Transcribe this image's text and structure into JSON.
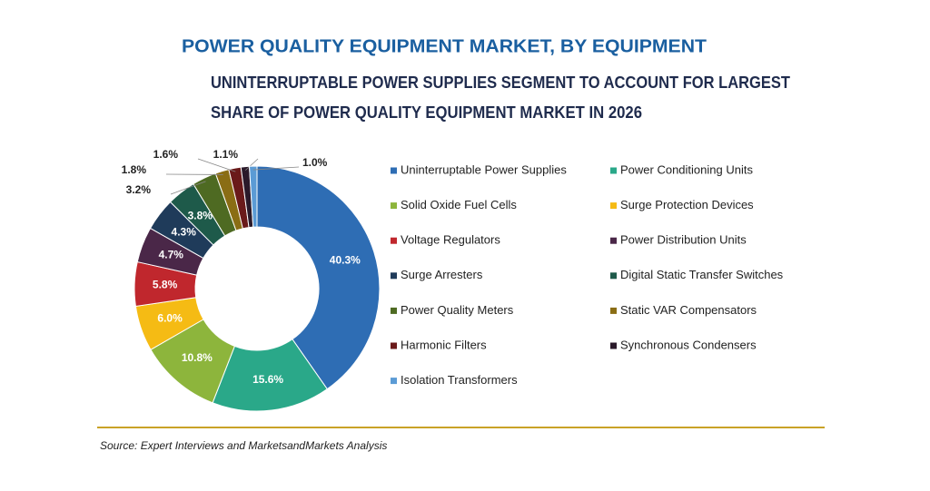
{
  "chart_data": {
    "type": "donut",
    "title": "POWER QUALITY EQUIPMENT MARKET, BY EQUIPMENT",
    "subtitle": [
      "UNINTERRUPTABLE POWER SUPPLIES SEGMENT TO ACCOUNT FOR LARGEST",
      "SHARE OF POWER QUALITY EQUIPMENT MARKET IN 2026"
    ],
    "categories": [
      "Uninterruptable Power Supplies",
      "Power Conditioning Units",
      "Solid Oxide Fuel Cells",
      "Surge Protection Devices",
      "Voltage Regulators",
      "Power Distribution Units",
      "Surge Arresters",
      "Digital Static Transfer Switches",
      "Power Quality Meters",
      "Static VAR Compensators",
      "Harmonic Filters",
      "Synchronous Condensers",
      "Isolation Transformers"
    ],
    "values": [
      40.3,
      15.6,
      10.8,
      6.0,
      5.8,
      4.7,
      4.3,
      3.8,
      3.2,
      1.8,
      1.6,
      1.1,
      1.0
    ],
    "value_labels": [
      "40.3%",
      "15.6%",
      "10.8%",
      "6.0%",
      "5.8%",
      "4.7%",
      "4.3%",
      "3.8%",
      "3.2%",
      "1.8%",
      "1.6%",
      "1.1%",
      "1.0%"
    ],
    "colors": [
      "#2e6db4",
      "#2aa889",
      "#8db53c",
      "#f5bb14",
      "#c0272d",
      "#4a2748",
      "#1f3b5a",
      "#1e5a4a",
      "#4e6a22",
      "#8a6d14",
      "#6a1a1a",
      "#2a1a2a",
      "#5b9bd5"
    ],
    "source": "Source: Expert Interviews and MarketsandMarkets Analysis"
  }
}
